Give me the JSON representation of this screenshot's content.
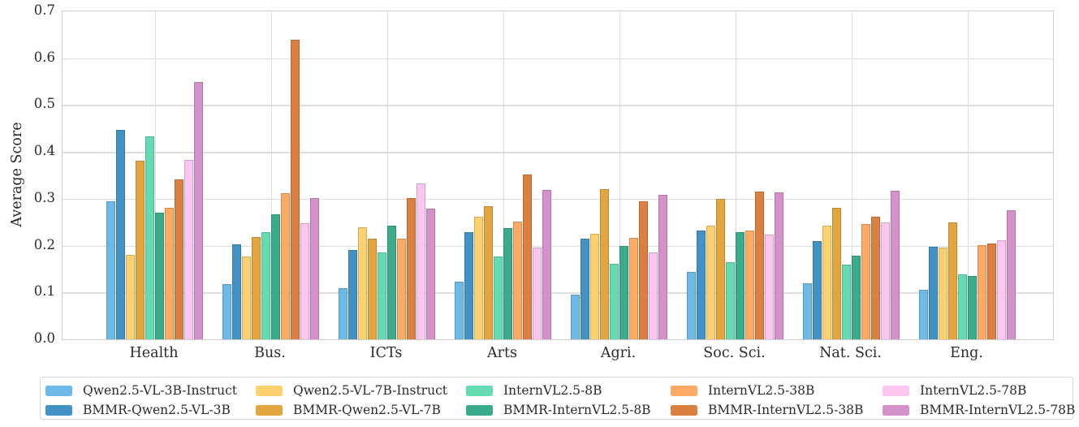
{
  "chart_data": {
    "type": "bar",
    "title": "",
    "xlabel": "",
    "ylabel": "Average Score",
    "ylim": [
      0.0,
      0.7
    ],
    "y_ticks": [
      0.0,
      0.1,
      0.2,
      0.3,
      0.4,
      0.5,
      0.6,
      0.7
    ],
    "y_tick_labels": [
      "0.0",
      "0.1",
      "0.2",
      "0.3",
      "0.4",
      "0.5",
      "0.6",
      "0.7"
    ],
    "grid": true,
    "legend_position": "bottom",
    "categories": [
      "Health",
      "Bus.",
      "ICTs",
      "Arts",
      "Agri.",
      "Soc. Sci.",
      "Nat. Sci.",
      "Eng."
    ],
    "series": [
      {
        "name": "Qwen2.5-VL-3B-Instruct",
        "color": "#6db9e7",
        "values": [
          0.294,
          0.117,
          0.109,
          0.123,
          0.095,
          0.144,
          0.119,
          0.106
        ]
      },
      {
        "name": "BMMR-Qwen2.5-VL-3B",
        "color": "#4292c6",
        "values": [
          0.447,
          0.203,
          0.191,
          0.228,
          0.215,
          0.233,
          0.209,
          0.198
        ]
      },
      {
        "name": "Qwen2.5-VL-7B-Instruct",
        "color": "#fdd170",
        "values": [
          0.18,
          0.176,
          0.239,
          0.261,
          0.225,
          0.242,
          0.242,
          0.195
        ]
      },
      {
        "name": "BMMR-Qwen2.5-VL-7B",
        "color": "#e3a63e",
        "values": [
          0.382,
          0.219,
          0.215,
          0.284,
          0.321,
          0.299,
          0.281,
          0.249
        ]
      },
      {
        "name": "InternVL2.5-8B",
        "color": "#65dbb1",
        "values": [
          0.434,
          0.228,
          0.186,
          0.176,
          0.162,
          0.164,
          0.159,
          0.139
        ]
      },
      {
        "name": "BMMR-InternVL2.5-8B",
        "color": "#3bac8b",
        "values": [
          0.27,
          0.267,
          0.242,
          0.237,
          0.199,
          0.228,
          0.178,
          0.136
        ]
      },
      {
        "name": "InternVL2.5-38B",
        "color": "#fdaa64",
        "values": [
          0.28,
          0.312,
          0.215,
          0.252,
          0.217,
          0.233,
          0.246,
          0.201
        ]
      },
      {
        "name": "BMMR-InternVL2.5-38B",
        "color": "#db8040",
        "values": [
          0.342,
          0.639,
          0.301,
          0.351,
          0.295,
          0.316,
          0.262,
          0.205
        ]
      },
      {
        "name": "InternVL2.5-78B",
        "color": "#fdc6f1",
        "values": [
          0.383,
          0.247,
          0.332,
          0.196,
          0.185,
          0.224,
          0.25,
          0.211
        ]
      },
      {
        "name": "BMMR-InternVL2.5-78B",
        "color": "#d591ca",
        "values": [
          0.55,
          0.301,
          0.279,
          0.319,
          0.308,
          0.314,
          0.317,
          0.275
        ]
      }
    ]
  }
}
